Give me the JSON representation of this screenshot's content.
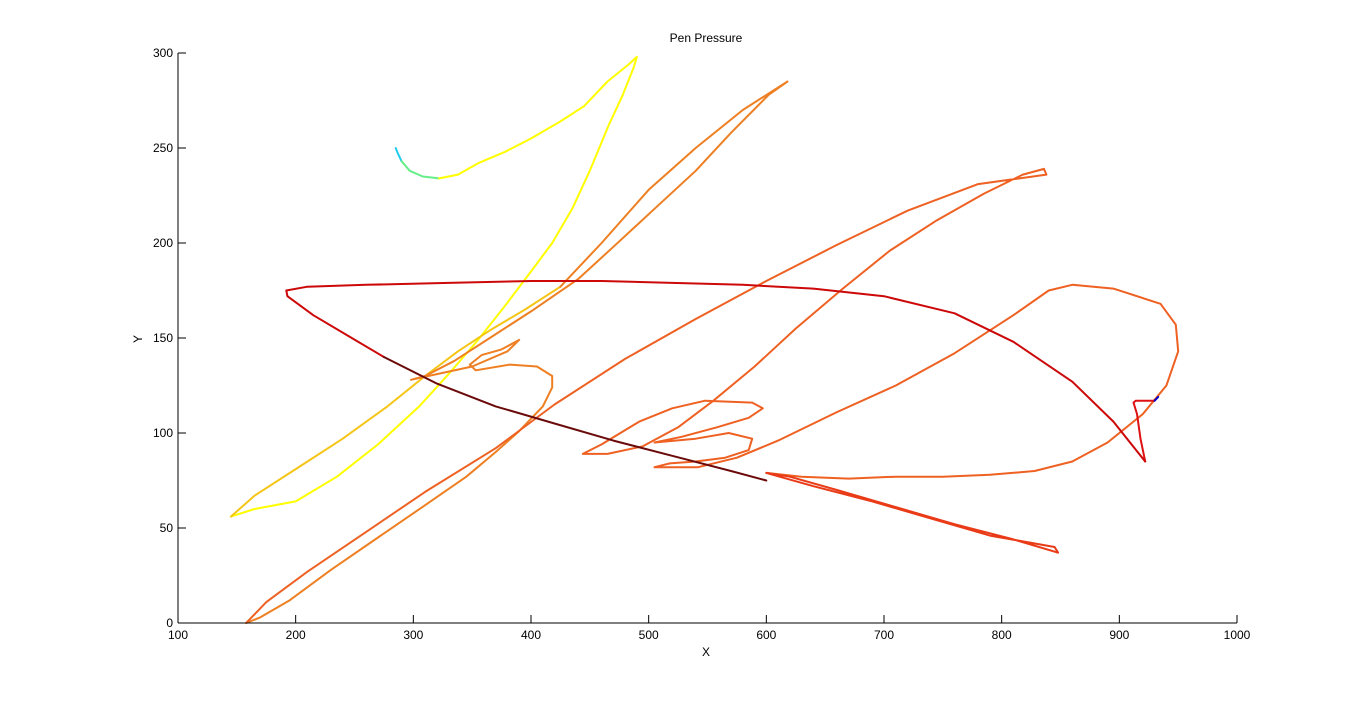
{
  "chart_data": {
    "type": "line",
    "title": "Pen Pressure",
    "xlabel": "X",
    "ylabel": "Y",
    "xlim": [
      100,
      1000
    ],
    "ylim": [
      0,
      300
    ],
    "x_ticks": [
      100,
      200,
      300,
      400,
      500,
      600,
      700,
      800,
      900,
      1000
    ],
    "y_ticks": [
      0,
      50,
      100,
      150,
      200,
      250,
      300
    ],
    "x_tick_labels": [
      "100",
      "200",
      "300",
      "400",
      "500",
      "600",
      "700",
      "800",
      "900",
      "1000"
    ],
    "y_tick_labels": [
      "0",
      "50",
      "100",
      "150",
      "200",
      "250",
      "300"
    ],
    "grid": false,
    "legend": "none",
    "series": [
      {
        "color": "#22ccee",
        "stroke": [
          [
            285,
            250
          ],
          [
            287,
            247
          ],
          [
            290,
            243
          ]
        ]
      },
      {
        "color": "#66ee88",
        "stroke": [
          [
            290,
            243
          ],
          [
            297,
            238
          ],
          [
            308,
            235
          ],
          [
            322,
            234
          ]
        ]
      },
      {
        "color": "#ffff00",
        "stroke": [
          [
            322,
            234
          ],
          [
            338,
            236
          ],
          [
            355,
            242
          ],
          [
            378,
            248
          ],
          [
            400,
            255
          ],
          [
            425,
            264
          ],
          [
            445,
            272
          ],
          [
            465,
            285
          ],
          [
            483,
            294
          ],
          [
            490,
            298
          ],
          [
            487,
            292
          ],
          [
            478,
            278
          ],
          [
            466,
            262
          ],
          [
            450,
            238
          ],
          [
            435,
            218
          ],
          [
            418,
            200
          ],
          [
            400,
            185
          ],
          [
            378,
            167
          ],
          [
            355,
            149
          ],
          [
            330,
            131
          ],
          [
            305,
            114
          ],
          [
            270,
            94
          ],
          [
            235,
            77
          ],
          [
            200,
            64
          ],
          [
            165,
            60
          ],
          [
            145,
            56
          ]
        ]
      },
      {
        "color": "#f5c516",
        "stroke": [
          [
            145,
            56
          ],
          [
            165,
            67
          ],
          [
            200,
            81
          ],
          [
            240,
            97
          ],
          [
            278,
            114
          ],
          [
            310,
            130
          ],
          [
            338,
            143
          ],
          [
            365,
            154
          ],
          [
            395,
            165
          ],
          [
            425,
            177
          ]
        ]
      },
      {
        "color": "#ee7f22",
        "stroke": [
          [
            425,
            177
          ],
          [
            460,
            200
          ],
          [
            500,
            228
          ],
          [
            540,
            250
          ],
          [
            580,
            270
          ],
          [
            618,
            285
          ],
          [
            602,
            278
          ],
          [
            570,
            258
          ],
          [
            540,
            238
          ],
          [
            505,
            218
          ],
          [
            470,
            198
          ],
          [
            440,
            181
          ],
          [
            400,
            164
          ],
          [
            365,
            150
          ],
          [
            335,
            138
          ],
          [
            310,
            130
          ],
          [
            298,
            128
          ],
          [
            320,
            131
          ],
          [
            350,
            135
          ],
          [
            380,
            143
          ],
          [
            390,
            149
          ],
          [
            375,
            144
          ],
          [
            358,
            141
          ],
          [
            348,
            136
          ],
          [
            353,
            133
          ],
          [
            382,
            136
          ],
          [
            405,
            135
          ],
          [
            418,
            130
          ],
          [
            418,
            124
          ],
          [
            410,
            114
          ],
          [
            390,
            101
          ],
          [
            370,
            90
          ],
          [
            345,
            77
          ],
          [
            310,
            62
          ],
          [
            270,
            45
          ],
          [
            230,
            28
          ],
          [
            195,
            12
          ],
          [
            170,
            3
          ],
          [
            158,
            0
          ]
        ]
      },
      {
        "color": "#ee6122",
        "stroke": [
          [
            158,
            0
          ],
          [
            175,
            11
          ],
          [
            210,
            27
          ],
          [
            260,
            48
          ],
          [
            310,
            69
          ],
          [
            370,
            92
          ],
          [
            420,
            115
          ],
          [
            480,
            139
          ],
          [
            540,
            160
          ],
          [
            600,
            180
          ],
          [
            660,
            199
          ],
          [
            720,
            217
          ],
          [
            780,
            231
          ],
          [
            838,
            236
          ],
          [
            836,
            239
          ],
          [
            818,
            236
          ],
          [
            785,
            226
          ],
          [
            745,
            212
          ],
          [
            705,
            196
          ],
          [
            665,
            176
          ],
          [
            625,
            155
          ],
          [
            590,
            135
          ],
          [
            555,
            117
          ],
          [
            525,
            103
          ],
          [
            495,
            93
          ],
          [
            465,
            89
          ],
          [
            444,
            89
          ],
          [
            460,
            94
          ],
          [
            492,
            106
          ],
          [
            520,
            113
          ],
          [
            548,
            117
          ],
          [
            588,
            116
          ],
          [
            597,
            113
          ],
          [
            585,
            108
          ],
          [
            558,
            103
          ],
          [
            528,
            98
          ],
          [
            505,
            95
          ],
          [
            540,
            97
          ],
          [
            568,
            100
          ],
          [
            588,
            97
          ],
          [
            585,
            91
          ],
          [
            565,
            87
          ],
          [
            540,
            85
          ],
          [
            518,
            84
          ],
          [
            505,
            82
          ],
          [
            542,
            82
          ],
          [
            575,
            87
          ],
          [
            610,
            96
          ],
          [
            660,
            111
          ],
          [
            710,
            125
          ],
          [
            760,
            142
          ],
          [
            810,
            162
          ],
          [
            840,
            175
          ],
          [
            860,
            178
          ],
          [
            895,
            176
          ],
          [
            935,
            168
          ],
          [
            948,
            157
          ],
          [
            950,
            143
          ],
          [
            940,
            125
          ],
          [
            920,
            110
          ],
          [
            890,
            95
          ],
          [
            860,
            85
          ],
          [
            828,
            80
          ],
          [
            790,
            78
          ],
          [
            750,
            77
          ],
          [
            710,
            77
          ],
          [
            670,
            76
          ],
          [
            630,
            77
          ],
          [
            600,
            79
          ]
        ]
      },
      {
        "color": "#ea3b18",
        "stroke": [
          [
            600,
            79
          ],
          [
            640,
            72
          ],
          [
            690,
            64
          ],
          [
            740,
            55
          ],
          [
            790,
            46
          ],
          [
            845,
            40
          ],
          [
            848,
            37
          ],
          [
            810,
            44
          ],
          [
            760,
            52
          ],
          [
            710,
            61
          ],
          [
            660,
            70
          ],
          [
            620,
            77
          ],
          [
            600,
            79
          ]
        ]
      },
      {
        "color": "#dd1111",
        "stroke": [
          [
            922,
            85
          ],
          [
            918,
            97
          ],
          [
            915,
            110
          ],
          [
            912,
            116
          ],
          [
            914,
            117
          ],
          [
            930,
            117
          ]
        ]
      },
      {
        "color": "#cc0808",
        "stroke": [
          [
            922,
            85
          ],
          [
            895,
            106
          ],
          [
            860,
            127
          ],
          [
            810,
            148
          ],
          [
            760,
            163
          ],
          [
            700,
            172
          ],
          [
            640,
            176
          ],
          [
            580,
            178
          ],
          [
            520,
            179
          ],
          [
            460,
            180
          ],
          [
            400,
            180
          ],
          [
            330,
            179
          ],
          [
            260,
            178
          ],
          [
            210,
            177
          ],
          [
            192,
            175
          ],
          [
            193,
            172
          ],
          [
            215,
            162
          ],
          [
            245,
            151
          ],
          [
            275,
            140
          ]
        ]
      },
      {
        "color": "#6b0a0a",
        "stroke": [
          [
            275,
            140
          ],
          [
            320,
            126
          ],
          [
            370,
            114
          ],
          [
            420,
            105
          ],
          [
            470,
            96
          ],
          [
            520,
            88
          ],
          [
            570,
            80
          ],
          [
            600,
            75
          ]
        ]
      },
      {
        "color": "#0000cc",
        "stroke": [
          [
            930,
            117
          ],
          [
            933,
            119
          ]
        ]
      }
    ]
  }
}
